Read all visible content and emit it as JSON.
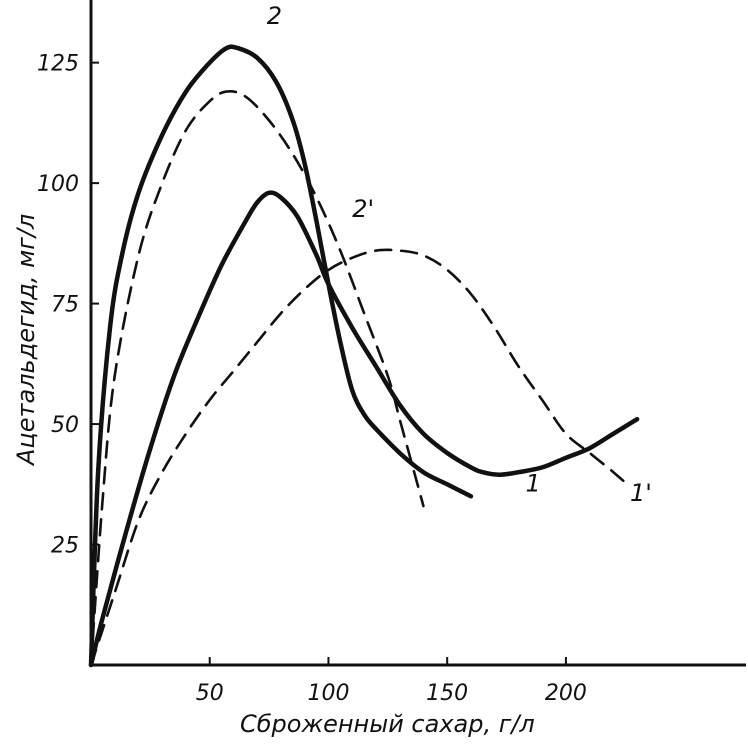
{
  "chart_data": {
    "type": "line",
    "title": "",
    "xlabel": "Сброженный сахар, г/л",
    "ylabel": "Ацетальдегид, мг/л",
    "xlim": [
      0,
      275
    ],
    "ylim": [
      0,
      138
    ],
    "x_ticks": [
      "50",
      "100",
      "150",
      "200"
    ],
    "y_ticks": [
      "25",
      "50",
      "75",
      "100",
      "125"
    ],
    "grid": false,
    "legend": "none",
    "series": [
      {
        "name": "1",
        "style": "solid",
        "points": [
          [
            0,
            0
          ],
          [
            5,
            10
          ],
          [
            15,
            28
          ],
          [
            25,
            45
          ],
          [
            35,
            60
          ],
          [
            45,
            72
          ],
          [
            55,
            83
          ],
          [
            65,
            92
          ],
          [
            70,
            96
          ],
          [
            75,
            98
          ],
          [
            80,
            97
          ],
          [
            87,
            93
          ],
          [
            95,
            85
          ],
          [
            100,
            79
          ],
          [
            110,
            70
          ],
          [
            120,
            62
          ],
          [
            130,
            54
          ],
          [
            140,
            48
          ],
          [
            150,
            44
          ],
          [
            160,
            41
          ],
          [
            165,
            40
          ],
          [
            172,
            39.5
          ],
          [
            180,
            40
          ],
          [
            190,
            41
          ],
          [
            200,
            43
          ],
          [
            210,
            45
          ],
          [
            220,
            48
          ],
          [
            230,
            51
          ]
        ]
      },
      {
        "name": "1'",
        "style": "dashed",
        "points": [
          [
            0,
            0
          ],
          [
            10,
            15
          ],
          [
            20,
            30
          ],
          [
            30,
            40
          ],
          [
            40,
            48
          ],
          [
            50,
            55
          ],
          [
            60,
            61
          ],
          [
            70,
            67
          ],
          [
            80,
            73
          ],
          [
            90,
            78
          ],
          [
            100,
            82
          ],
          [
            110,
            84.5
          ],
          [
            120,
            86
          ],
          [
            130,
            86
          ],
          [
            140,
            85
          ],
          [
            150,
            82
          ],
          [
            160,
            77
          ],
          [
            170,
            70
          ],
          [
            180,
            62
          ],
          [
            190,
            55
          ],
          [
            200,
            48
          ],
          [
            210,
            44
          ],
          [
            220,
            40
          ],
          [
            227,
            37
          ]
        ]
      },
      {
        "name": "2",
        "style": "solid",
        "points": [
          [
            0,
            0
          ],
          [
            3,
            40
          ],
          [
            8,
            70
          ],
          [
            13,
            85
          ],
          [
            20,
            98
          ],
          [
            30,
            110
          ],
          [
            40,
            119
          ],
          [
            50,
            125
          ],
          [
            57,
            128
          ],
          [
            62,
            128
          ],
          [
            70,
            126
          ],
          [
            78,
            121
          ],
          [
            85,
            113
          ],
          [
            90,
            104
          ],
          [
            95,
            92
          ],
          [
            100,
            79
          ],
          [
            105,
            67
          ],
          [
            110,
            57
          ],
          [
            115,
            52
          ],
          [
            120,
            49
          ],
          [
            130,
            44
          ],
          [
            140,
            40
          ],
          [
            150,
            37.5
          ],
          [
            160,
            35
          ]
        ]
      },
      {
        "name": "2'",
        "style": "dashed",
        "points": [
          [
            0,
            0
          ],
          [
            5,
            35
          ],
          [
            10,
            60
          ],
          [
            20,
            85
          ],
          [
            30,
            100
          ],
          [
            40,
            111
          ],
          [
            50,
            117
          ],
          [
            57,
            119
          ],
          [
            65,
            118
          ],
          [
            75,
            113
          ],
          [
            85,
            106
          ],
          [
            95,
            97
          ],
          [
            105,
            86
          ],
          [
            115,
            73
          ],
          [
            125,
            60
          ],
          [
            130,
            51
          ],
          [
            135,
            42
          ],
          [
            140,
            33
          ]
        ]
      }
    ],
    "annotations": [
      {
        "text": "1",
        "at": [
          183,
          36
        ]
      },
      {
        "text": "1'",
        "at": [
          227,
          34
        ]
      },
      {
        "text": "2",
        "at": [
          74,
          133
        ]
      },
      {
        "text": "2'",
        "at": [
          110,
          93
        ]
      }
    ]
  }
}
